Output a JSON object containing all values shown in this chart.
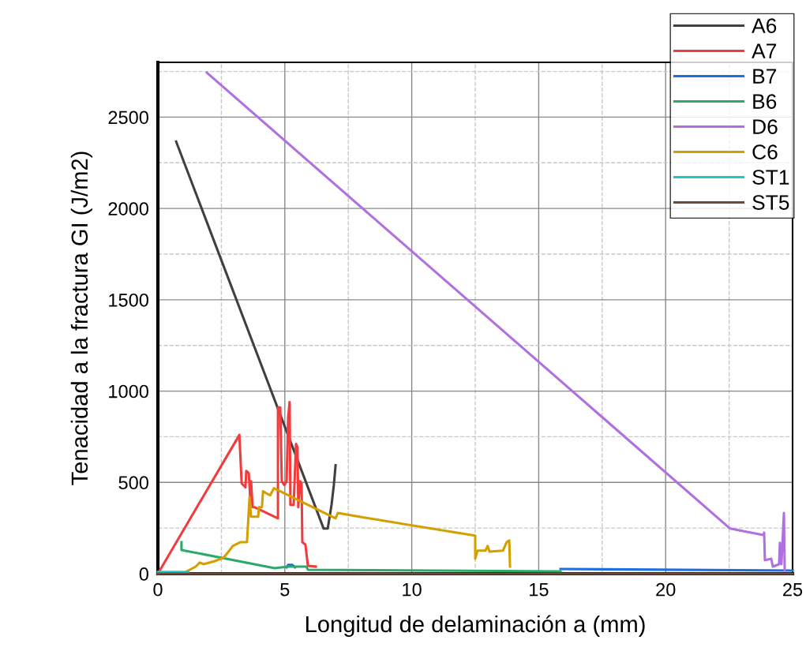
{
  "chart_data": {
    "type": "line",
    "xlabel": "Longitud de delaminación a (mm)",
    "ylabel": "Tenacidad a la fractura GI (J/m2)",
    "xlim": [
      0,
      25
    ],
    "ylim": [
      0,
      2800
    ],
    "xticks": [
      0,
      5,
      10,
      15,
      20,
      25
    ],
    "yticks": [
      0,
      500,
      1000,
      1500,
      2000,
      2500
    ],
    "grid": true,
    "legend": "top right",
    "marker": "none",
    "line_style": "solid",
    "series": [
      {
        "name": "A6",
        "color": "#404040",
        "x": [
          0.72,
          6.53,
          6.69,
          6.84,
          6.93,
          7.0
        ],
        "values": [
          2366,
          247,
          247,
          377,
          485,
          594
        ]
      },
      {
        "name": "A7",
        "color": "#f03c3c",
        "x": [
          0,
          3.21,
          3.3,
          3.45,
          3.48,
          3.58,
          3.64,
          3.67,
          3.73,
          3.82,
          4.73,
          4.73,
          4.82,
          4.88,
          4.98,
          5.07,
          5.13,
          5.19,
          5.22,
          5.35,
          5.44,
          5.5,
          5.53,
          5.6,
          5.66,
          5.69,
          5.81,
          5.91,
          6.22
        ],
        "values": [
          0,
          760,
          495,
          473,
          563,
          550,
          407,
          507,
          364,
          364,
          303,
          910,
          910,
          507,
          485,
          507,
          854,
          940,
          377,
          377,
          711,
          693,
          364,
          507,
          494,
          173,
          160,
          43,
          39
        ]
      },
      {
        "name": "B7",
        "color": "#1f6fe0",
        "x": [
          5.07,
          5.13,
          5.3,
          5.4,
          10,
          15.86,
          25
        ],
        "values": [
          35,
          48,
          48,
          35,
          null,
          26,
          17
        ]
      },
      {
        "name": "B6",
        "color": "#2daa6a",
        "x": [
          0.93,
          0.93,
          4.6,
          5.13,
          5.85,
          5.91,
          15.86
        ],
        "values": [
          173,
          130,
          30,
          39,
          39,
          22,
          13
        ]
      },
      {
        "name": "D6",
        "color": "#b070e0",
        "x": [
          1.93,
          22.54,
          23.85,
          23.88,
          23.91,
          24.16,
          24.22,
          24.47,
          24.5,
          24.56,
          24.66,
          24.69
        ],
        "values": [
          2743,
          247,
          212,
          225,
          74,
          82,
          39,
          52,
          169,
          52,
          333,
          17
        ]
      },
      {
        "name": "C6",
        "color": "#d4a000",
        "x": [
          1.14,
          1.49,
          1.65,
          1.8,
          2.24,
          2.58,
          2.71,
          2.95,
          3.26,
          3.51,
          3.61,
          3.67,
          3.95,
          3.98,
          4.1,
          4.14,
          4.42,
          4.57,
          7.0,
          7.09,
          7.93,
          12.5,
          12.5,
          12.59,
          12.9,
          12.99,
          13.06,
          13.59,
          13.74,
          13.84,
          13.87
        ],
        "values": [
          13,
          39,
          61,
          52,
          69,
          87,
          108,
          152,
          173,
          173,
          420,
          312,
          312,
          364,
          364,
          451,
          429,
          468,
          303,
          333,
          312,
          208,
          82,
          126,
          126,
          152,
          121,
          126,
          173,
          182,
          39
        ]
      },
      {
        "name": "ST1",
        "color": "#1fc8c8",
        "x": [
          0,
          1.2
        ],
        "values": [
          10,
          10
        ]
      },
      {
        "name": "ST5",
        "color": "#6b4a3a",
        "x": [
          0,
          25
        ],
        "values": [
          0,
          0
        ]
      }
    ]
  }
}
